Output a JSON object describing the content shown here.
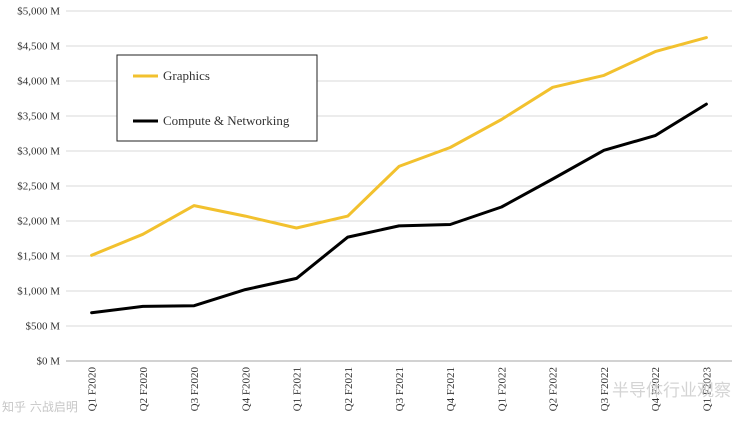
{
  "chart_data": {
    "type": "line",
    "title": "",
    "xlabel": "",
    "ylabel": "",
    "ylim": [
      0,
      5000
    ],
    "y_ticks": [
      0,
      500,
      1000,
      1500,
      2000,
      2500,
      3000,
      3500,
      4000,
      4500,
      5000
    ],
    "y_tick_labels": [
      "$0 M",
      "$500 M",
      "$1,000 M",
      "$1,500 M",
      "$2,000 M",
      "$2,500 M",
      "$3,000 M",
      "$3,500 M",
      "$4,000 M",
      "$4,500 M",
      "$5,000 M"
    ],
    "categories": [
      "Q1 F2020",
      "Q2 F2020",
      "Q3 F2020",
      "Q4 F2020",
      "Q1 F2021",
      "Q2 F2021",
      "Q3 F2021",
      "Q4 F2021",
      "Q1 F2022",
      "Q2 F2022",
      "Q3 F2022",
      "Q4 F2022",
      "Q1 F2023"
    ],
    "series": [
      {
        "name": "Graphics",
        "color": "#F2C12E",
        "values": [
          1510,
          1810,
          2220,
          2070,
          1900,
          2070,
          2780,
          3050,
          3450,
          3910,
          4080,
          4420,
          4620
        ]
      },
      {
        "name": "Compute & Networking",
        "color": "#000000",
        "values": [
          690,
          780,
          790,
          1020,
          1180,
          1770,
          1930,
          1950,
          2200,
          2600,
          3010,
          3220,
          3670
        ]
      }
    ],
    "grid": true,
    "legend_position": "top-left"
  },
  "watermarks": {
    "left": "知乎 六战启明",
    "right": "半导体行业观察"
  }
}
